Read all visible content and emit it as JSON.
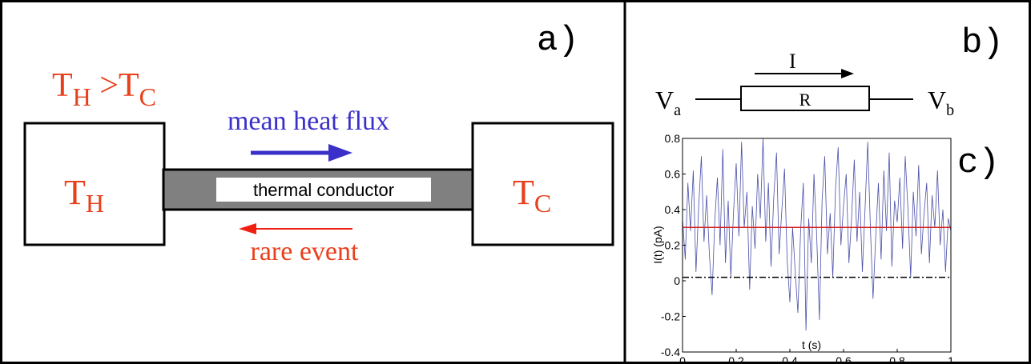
{
  "panel_a": {
    "label": "a)",
    "condition": [
      {
        "base": "T",
        "sub": "H"
      },
      {
        "base": " >T",
        "sub": "C"
      }
    ],
    "hot_box": {
      "base": "T",
      "sub": "H"
    },
    "cold_box": {
      "base": "T",
      "sub": "C"
    },
    "conductor": "thermal conductor",
    "mean_flux": "mean heat flux",
    "rare_event": "rare event"
  },
  "panel_b": {
    "label": "b)",
    "current": "I",
    "resistor": "R",
    "left_voltage": {
      "base": "V",
      "sub": "a"
    },
    "right_voltage": {
      "base": "V",
      "sub": "b"
    }
  },
  "panel_c_label": "c)",
  "chart_data": {
    "type": "line",
    "xlabel": "t (s)",
    "ylabel": "I(t) (pA)",
    "xlim": [
      0,
      1
    ],
    "ylim": [
      -0.4,
      0.8
    ],
    "xticks": [
      0,
      0.2,
      0.4,
      0.6,
      0.8,
      1
    ],
    "yticks": [
      -0.4,
      -0.2,
      0,
      0.2,
      0.4,
      0.6,
      0.8
    ],
    "series": [
      {
        "color": "#4a4fa8",
        "dash": "solid",
        "x": [
          0,
          0.01,
          0.02,
          0.03,
          0.04,
          0.05,
          0.06,
          0.07,
          0.08,
          0.09,
          0.1,
          0.11,
          0.12,
          0.13,
          0.14,
          0.15,
          0.16,
          0.17,
          0.18,
          0.19,
          0.2,
          0.21,
          0.22,
          0.23,
          0.24,
          0.25,
          0.26,
          0.27,
          0.28,
          0.29,
          0.3,
          0.31,
          0.32,
          0.33,
          0.34,
          0.35,
          0.36,
          0.37,
          0.38,
          0.39,
          0.4,
          0.41,
          0.42,
          0.43,
          0.44,
          0.45,
          0.46,
          0.47,
          0.48,
          0.49,
          0.5,
          0.51,
          0.52,
          0.53,
          0.54,
          0.55,
          0.56,
          0.57,
          0.58,
          0.59,
          0.6,
          0.61,
          0.62,
          0.63,
          0.64,
          0.65,
          0.66,
          0.67,
          0.68,
          0.69,
          0.7,
          0.71,
          0.72,
          0.73,
          0.74,
          0.75,
          0.76,
          0.77,
          0.78,
          0.79,
          0.8,
          0.81,
          0.82,
          0.83,
          0.84,
          0.85,
          0.86,
          0.87,
          0.88,
          0.89,
          0.9,
          0.91,
          0.92,
          0.93,
          0.94,
          0.95,
          0.96,
          0.97,
          0.98,
          0.99,
          1
        ],
        "values": [
          0.35,
          0.12,
          0.55,
          0.28,
          0.62,
          0.05,
          0.41,
          0.7,
          0.22,
          0.48,
          0.15,
          -0.08,
          0.33,
          0.58,
          0.2,
          0.74,
          0.1,
          0.45,
          0.02,
          0.38,
          0.66,
          0.25,
          0.78,
          0.3,
          0.5,
          -0.05,
          0.42,
          0.18,
          0.6,
          0.35,
          0.8,
          0.22,
          0.55,
          0.08,
          0.47,
          0.72,
          0.15,
          0.4,
          0.63,
          0.12,
          -0.12,
          0.3,
          0.05,
          -0.18,
          0.28,
          0.55,
          -0.28,
          0.35,
          0.1,
          0.6,
          0.25,
          -0.22,
          0.45,
          0.7,
          0.15,
          0.38,
          0.02,
          0.52,
          0.75,
          0.2,
          0.42,
          0.6,
          0.1,
          0.35,
          0.68,
          0.22,
          0.5,
          0.05,
          0.4,
          0.78,
          0.3,
          -0.1,
          0.25,
          0.55,
          0.12,
          0.62,
          0.28,
          0.72,
          0.08,
          0.45,
          0.33,
          0.58,
          0.18,
          0.7,
          0.4,
          0.02,
          0.5,
          0.25,
          0.65,
          0.15,
          0.38,
          0.55,
          0.1,
          0.48,
          0.3,
          0.62,
          0.2,
          0.4,
          0.05,
          0.35,
          0.28
        ]
      },
      {
        "color": "#d42020",
        "dash": "solid",
        "x": [
          0,
          1
        ],
        "values": [
          0.3,
          0.3
        ]
      },
      {
        "color": "#000000",
        "dash": "dashdot",
        "x": [
          0,
          1
        ],
        "values": [
          0.02,
          0.02
        ]
      }
    ]
  }
}
